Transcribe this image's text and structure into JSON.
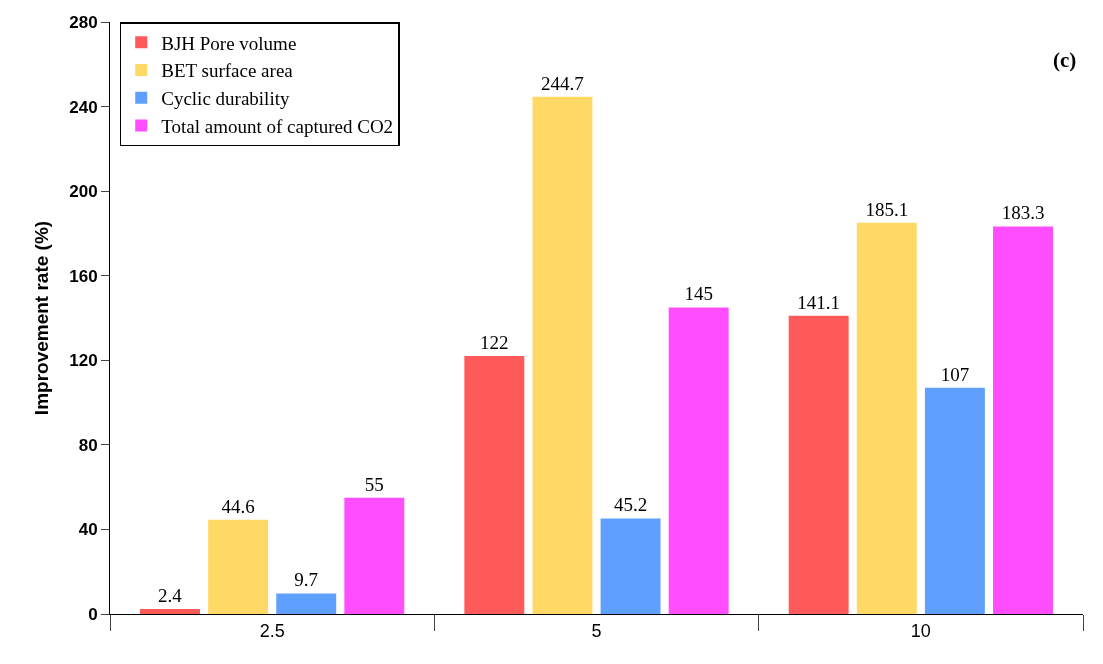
{
  "chart_data": {
    "type": "bar",
    "annotations": [
      "(c)"
    ],
    "ylabel": "Improvement rate (%)",
    "categories": [
      "2.5",
      "5",
      "10"
    ],
    "series": [
      {
        "name": "BJH Pore volume",
        "color": "#ff5a5a",
        "values": [
          2.4,
          122,
          141.1
        ]
      },
      {
        "name": "BET surface area",
        "color": "#ffd966",
        "values": [
          44.6,
          244.7,
          185.1
        ]
      },
      {
        "name": "Cyclic durability",
        "color": "#5fa0ff",
        "values": [
          9.7,
          45.2,
          107
        ]
      },
      {
        "name": "Total amount of captured CO2",
        "color": "#ff4dff",
        "values": [
          55,
          145,
          183.3
        ]
      }
    ],
    "ylim": [
      0,
      280
    ],
    "yticks": [
      0,
      40,
      80,
      120,
      160,
      200,
      240,
      280
    ],
    "data_labels": true,
    "legend": "top left",
    "grid": false
  }
}
